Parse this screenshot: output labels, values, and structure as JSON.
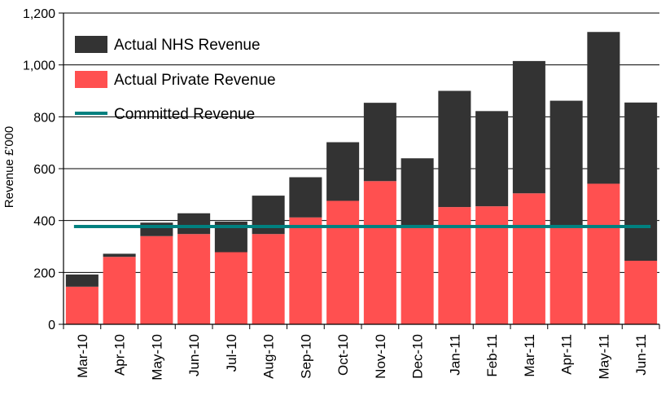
{
  "chart_data": {
    "type": "bar",
    "stacked": true,
    "categories": [
      "Mar-10",
      "Apr-10",
      "May-10",
      "Jun-10",
      "Jul-10",
      "Aug-10",
      "Sep-10",
      "Oct-10",
      "Nov-10",
      "Dec-10",
      "Jan-11",
      "Feb-11",
      "Mar-11",
      "Apr-11",
      "May-11",
      "Jun-11"
    ],
    "series": [
      {
        "name": "Actual Private Revenue",
        "color": "#ff5050",
        "values": [
          145,
          260,
          340,
          348,
          278,
          348,
          412,
          476,
          552,
          378,
          452,
          455,
          505,
          380,
          542,
          245
        ]
      },
      {
        "name": "Actual NHS Revenue",
        "color": "#333333",
        "values": [
          47,
          12,
          52,
          80,
          118,
          148,
          155,
          226,
          302,
          262,
          448,
          367,
          510,
          482,
          585,
          610
        ]
      }
    ],
    "lines": [
      {
        "name": "Committed Revenue",
        "color": "#00807f",
        "value": 377
      }
    ],
    "ylabel": "Revenue £'000",
    "xlabel": "",
    "ylim": [
      0,
      1200
    ],
    "yticks": [
      0,
      200,
      400,
      600,
      800,
      1000,
      1200
    ],
    "ytick_labels": [
      "0",
      "200",
      "400",
      "600",
      "800",
      "1,000",
      "1,200"
    ],
    "grid": true,
    "legend_position": "top-left",
    "legend": [
      "Actual NHS Revenue",
      "Actual Private Revenue",
      "Committed Revenue"
    ]
  }
}
